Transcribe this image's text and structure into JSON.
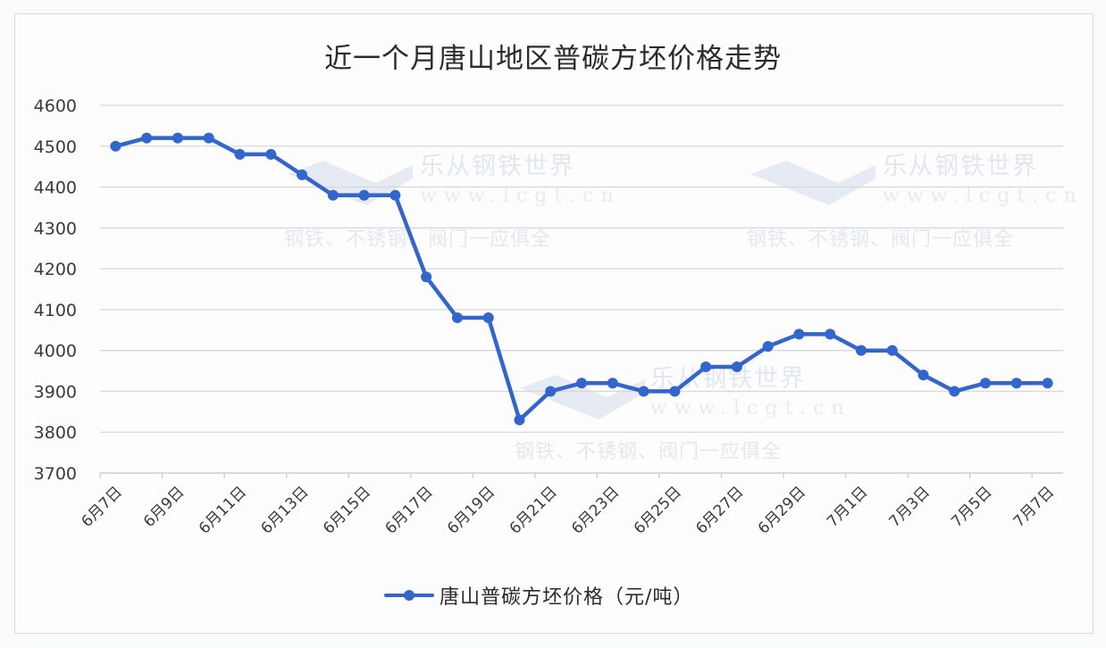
{
  "chart_data": {
    "type": "line",
    "title": "近一个月唐山地区普碳方坯价格走势",
    "xlabel": "",
    "ylabel": "",
    "ylim": [
      3700,
      4600
    ],
    "yticks": [
      3700,
      3800,
      3900,
      4000,
      4100,
      4200,
      4300,
      4400,
      4500,
      4600
    ],
    "grid": true,
    "legend_position": "bottom",
    "x": [
      "6月7日",
      "6月8日",
      "6月9日",
      "6月10日",
      "6月11日",
      "6月12日",
      "6月13日",
      "6月14日",
      "6月15日",
      "6月16日",
      "6月17日",
      "6月18日",
      "6月19日",
      "6月20日",
      "6月21日",
      "6月22日",
      "6月23日",
      "6月24日",
      "6月25日",
      "6月26日",
      "6月27日",
      "6月28日",
      "6月29日",
      "6月30日",
      "7月1日",
      "7月2日",
      "7月3日",
      "7月4日",
      "7月5日",
      "7月6日",
      "7月7日"
    ],
    "xtick_labels": [
      "6月7日",
      "6月9日",
      "6月11日",
      "6月13日",
      "6月15日",
      "6月17日",
      "6月19日",
      "6月21日",
      "6月23日",
      "6月25日",
      "6月27日",
      "6月29日",
      "7月1日",
      "7月3日",
      "7月5日",
      "7月7日"
    ],
    "series": [
      {
        "name": "唐山普碳方坯价格（元/吨）",
        "color": "#3366cc",
        "values": [
          4500,
          4520,
          4520,
          4520,
          4480,
          4480,
          4430,
          4380,
          4380,
          4380,
          4180,
          4080,
          4080,
          3830,
          3900,
          3920,
          3920,
          3900,
          3900,
          3960,
          3960,
          4010,
          4040,
          4040,
          4000,
          4000,
          3940,
          3900,
          3920,
          3920,
          3920
        ]
      }
    ]
  },
  "title": "近一个月唐山地区普碳方坯价格走势",
  "legend": {
    "label": "唐山普碳方坯价格（元/吨）"
  },
  "watermark": {
    "name": "乐从钢铁世界",
    "url": "www.lcgt.cn",
    "tagline": "钢铁、不锈钢、阀门一应俱全"
  }
}
